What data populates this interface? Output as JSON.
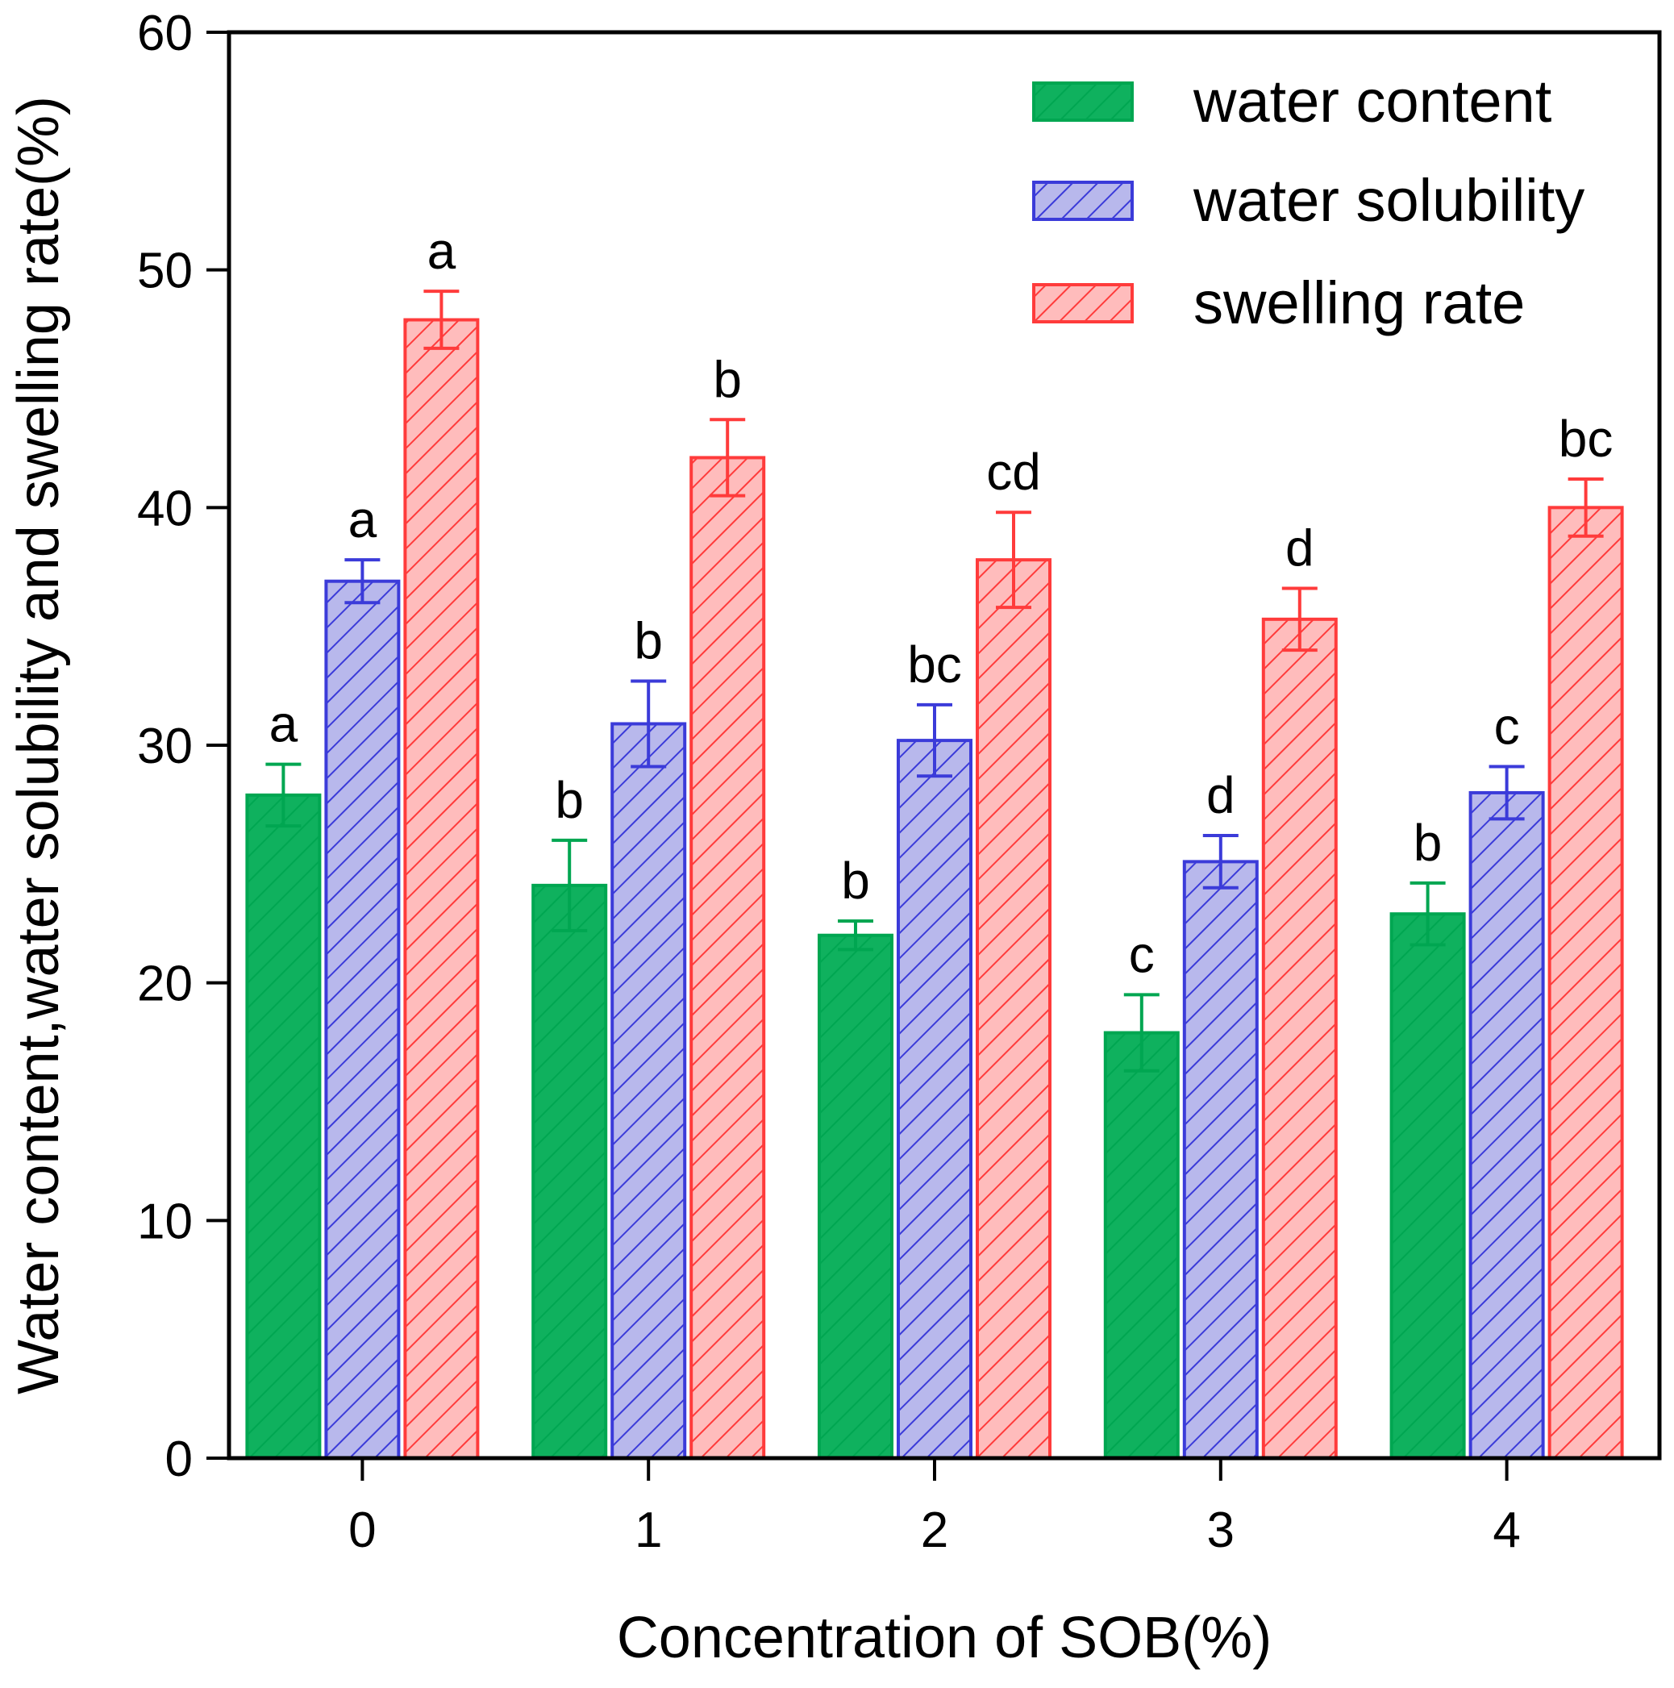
{
  "chart_data": {
    "type": "bar",
    "title": "",
    "xlabel": "Concentration of SOB(%)",
    "ylabel": "Water content,water solubility and swelling rate(%)",
    "ylim": [
      0,
      60
    ],
    "yticks": [
      0,
      10,
      20,
      30,
      40,
      50,
      60
    ],
    "categories": [
      "0",
      "1",
      "2",
      "3",
      "4"
    ],
    "legend_position": "top-right",
    "series": [
      {
        "name": "water content",
        "color": "#00a651",
        "values": [
          27.9,
          24.1,
          22.0,
          17.9,
          22.9
        ],
        "errors": [
          1.3,
          1.9,
          0.6,
          1.6,
          1.3
        ],
        "sig_labels": [
          "a",
          "b",
          "b",
          "c",
          "b"
        ]
      },
      {
        "name": "water solubility",
        "color": "#3b3bd9",
        "values": [
          36.9,
          30.9,
          30.2,
          25.1,
          28.0
        ],
        "errors": [
          0.9,
          1.8,
          1.5,
          1.1,
          1.1
        ],
        "sig_labels": [
          "a",
          "b",
          "bc",
          "d",
          "c"
        ]
      },
      {
        "name": "swelling rate",
        "color": "#ff3b3b",
        "values": [
          47.9,
          42.1,
          37.8,
          35.3,
          40.0
        ],
        "errors": [
          1.2,
          1.6,
          2.0,
          1.3,
          1.2
        ],
        "sig_labels": [
          "a",
          "b",
          "cd",
          "d",
          "bc"
        ]
      }
    ]
  }
}
